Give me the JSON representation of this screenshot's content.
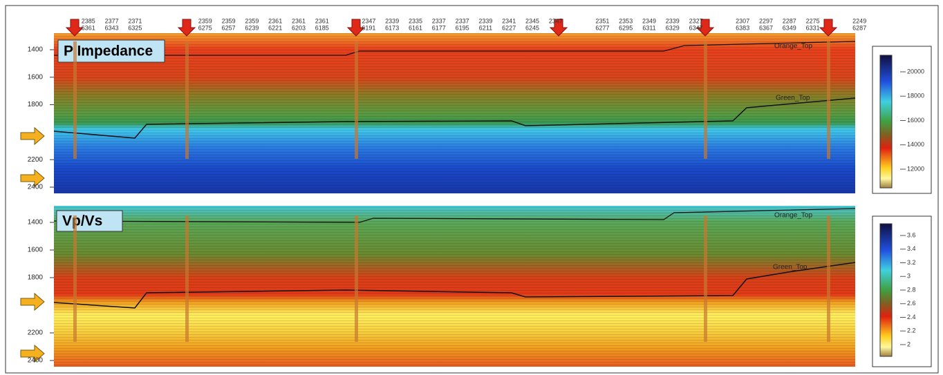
{
  "header": {
    "trace_row1": [
      null,
      2385,
      2377,
      2371,
      null,
      null,
      2359,
      2359,
      2359,
      2361,
      2361,
      2361,
      null,
      2347,
      2339,
      2335,
      2337,
      2337,
      2339,
      2341,
      2345,
      2347,
      null,
      2351,
      2353,
      2349,
      2339,
      2327,
      null,
      2307,
      2297,
      2287,
      2275,
      null,
      2249
    ],
    "trace_row2": [
      null,
      6361,
      6343,
      6325,
      null,
      null,
      6275,
      6257,
      6239,
      6221,
      6203,
      6185,
      null,
      6191,
      6173,
      6161,
      6177,
      6195,
      6211,
      6227,
      6245,
      null,
      null,
      6277,
      6295,
      6311,
      6329,
      6347,
      null,
      6383,
      6367,
      6349,
      6331,
      null,
      6287
    ]
  },
  "panels": [
    {
      "label": "P Impedance",
      "depth_ticks": [
        1400,
        1600,
        1800,
        2200,
        2400
      ],
      "horizons": [
        "Orange_Top",
        "Green_Top"
      ],
      "colorbar_ticks": [
        20000,
        18000,
        16000,
        14000,
        12000
      ]
    },
    {
      "label": "Vp/Vs",
      "depth_ticks": [
        1400,
        1600,
        1800,
        2200,
        2400
      ],
      "horizons": [
        "Orange_Top",
        "Green_Top"
      ],
      "colorbar_ticks": [
        3.6,
        3.4,
        3.2,
        3,
        2.8,
        2.6,
        2.4,
        2.2,
        2
      ]
    }
  ]
}
